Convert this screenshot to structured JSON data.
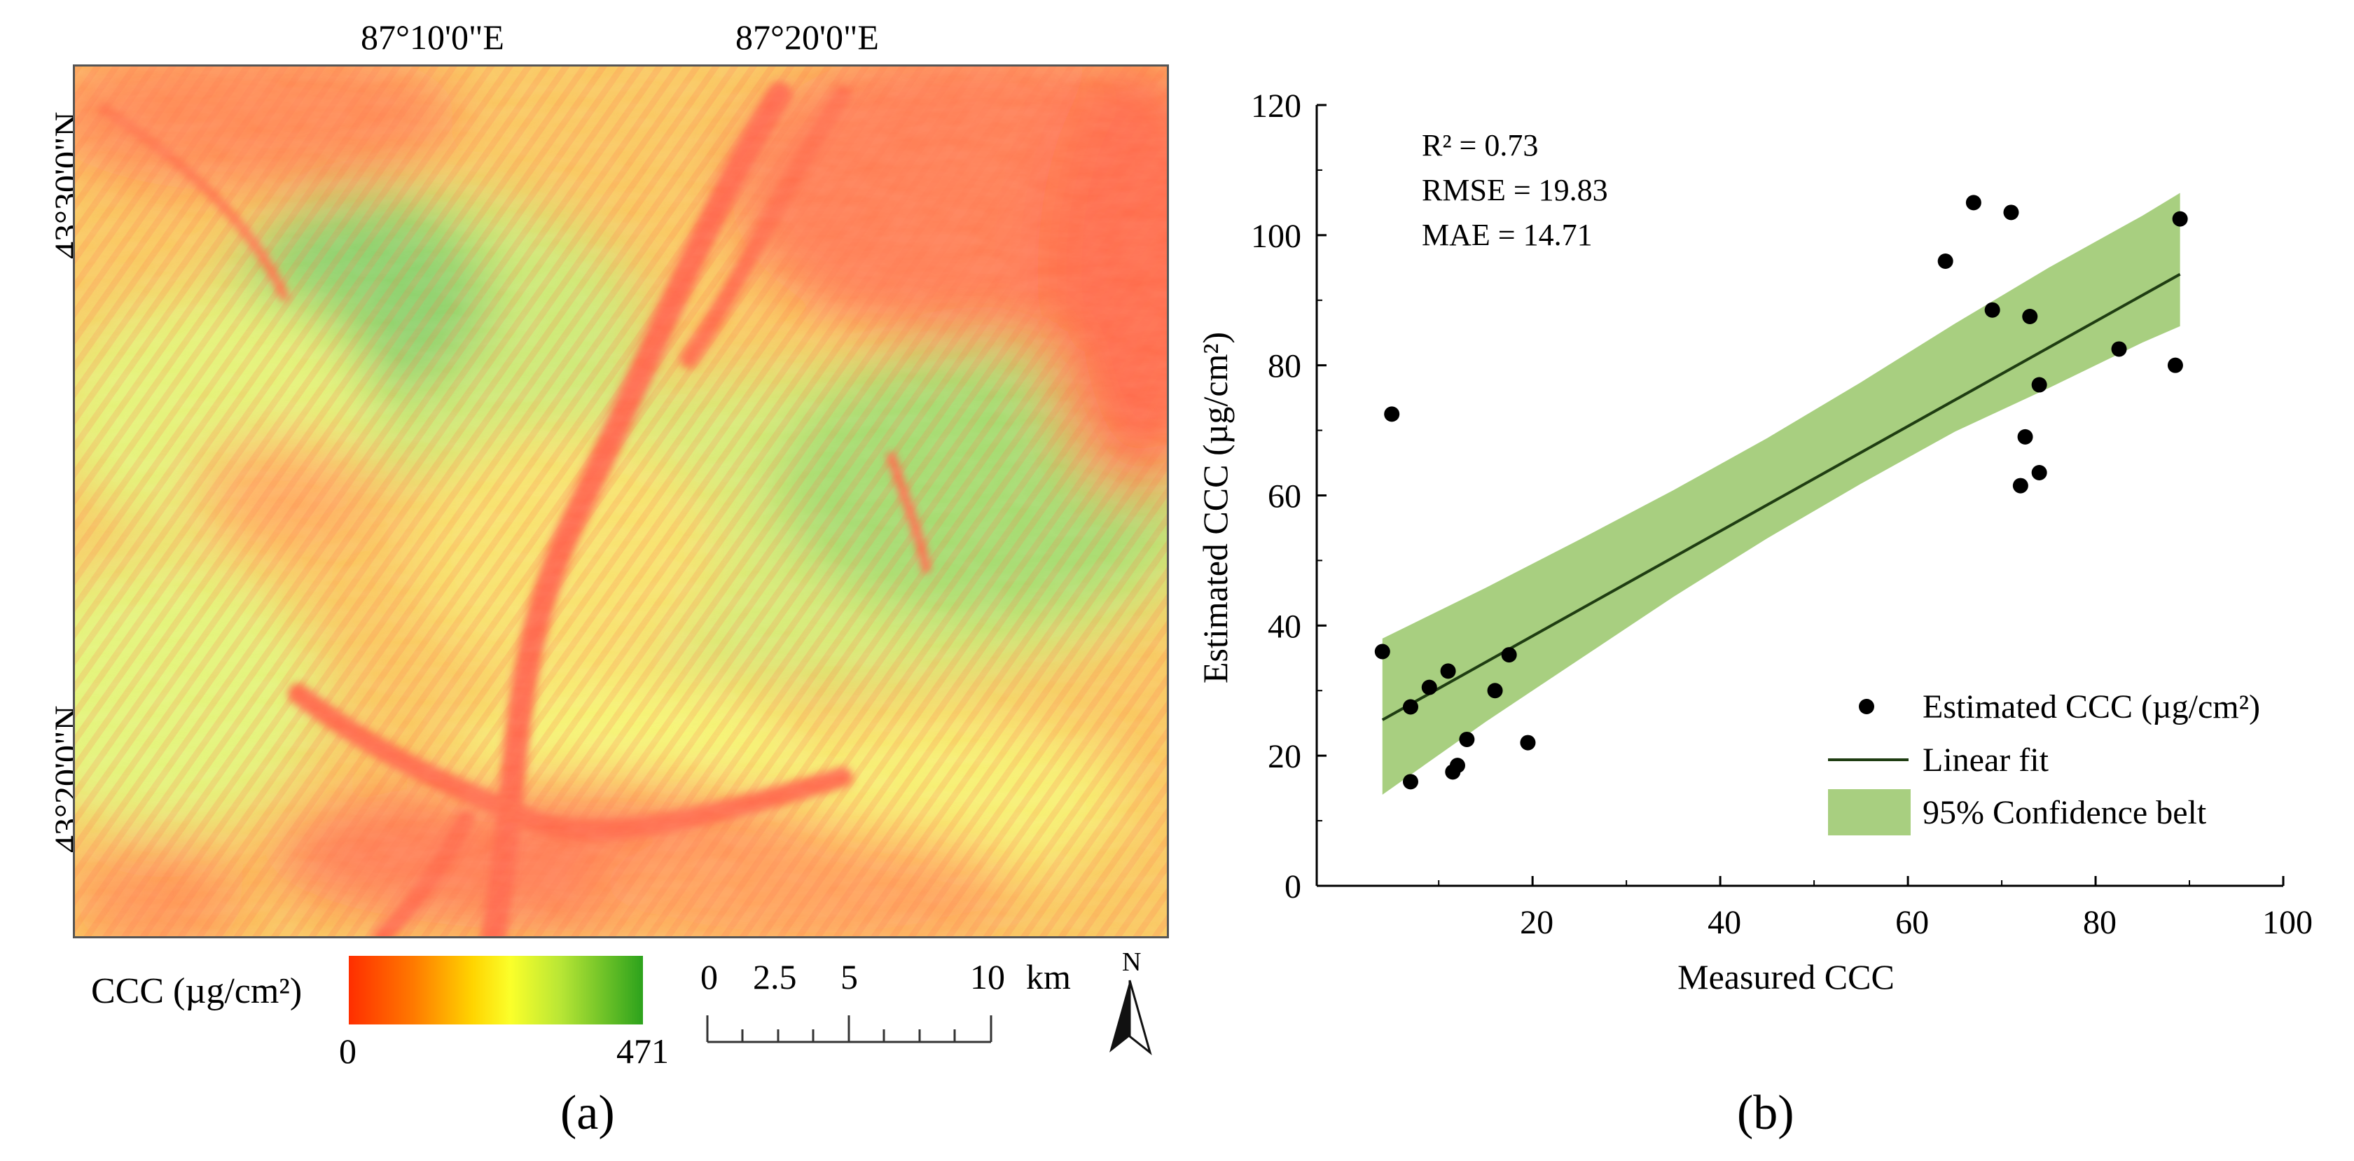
{
  "panel_a": {
    "label": "(a)",
    "lon_ticks": [
      "87°10'0\"E",
      "87°20'0\"E"
    ],
    "lat_ticks": [
      "43°30'0\"N",
      "43°20'0\"N"
    ],
    "legend": {
      "title": "CCC (µg/cm²)",
      "min": "0",
      "max": "471"
    },
    "scale_bar": {
      "labels": [
        "0",
        "2.5",
        "5",
        "10"
      ],
      "unit": "km"
    },
    "north_arrow": "N",
    "colors": {
      "low": "#ff2e00",
      "mid": "#fbff2a",
      "high": "#2ca21c"
    }
  },
  "panel_b": {
    "label": "(b)",
    "stats": [
      "R² = 0.73",
      "RMSE = 19.83",
      "MAE = 14.71"
    ],
    "legend": [
      "Estimated CCC (µg/cm²)",
      "Linear fit",
      "95% Confidence belt"
    ],
    "colors": {
      "points": "#000000",
      "fit": "#1f3d12",
      "band": "#a8cf80"
    }
  },
  "chart_data": {
    "type": "scatter",
    "title": "",
    "xlabel": "Measured CCC",
    "ylabel": "Estimated CCC (µg/cm²)",
    "xlim": [
      -3,
      100
    ],
    "ylim": [
      0,
      120
    ],
    "xticks": [
      20,
      40,
      60,
      80,
      100
    ],
    "yticks": [
      0,
      20,
      40,
      60,
      80,
      100,
      120
    ],
    "points": [
      {
        "x": 4,
        "y": 36
      },
      {
        "x": 5,
        "y": 72.5
      },
      {
        "x": 7,
        "y": 27.5
      },
      {
        "x": 7,
        "y": 16
      },
      {
        "x": 9,
        "y": 30.5
      },
      {
        "x": 11,
        "y": 33
      },
      {
        "x": 11.5,
        "y": 17.5
      },
      {
        "x": 12,
        "y": 18.5
      },
      {
        "x": 13,
        "y": 22.5
      },
      {
        "x": 16,
        "y": 30
      },
      {
        "x": 17.5,
        "y": 35.5
      },
      {
        "x": 19.5,
        "y": 22
      },
      {
        "x": 64,
        "y": 96
      },
      {
        "x": 67,
        "y": 105
      },
      {
        "x": 69,
        "y": 88.5
      },
      {
        "x": 71,
        "y": 103.5
      },
      {
        "x": 72,
        "y": 61.5
      },
      {
        "x": 72.5,
        "y": 69
      },
      {
        "x": 73,
        "y": 87.5
      },
      {
        "x": 74,
        "y": 77
      },
      {
        "x": 74,
        "y": 63.5
      },
      {
        "x": 82.5,
        "y": 82.5
      },
      {
        "x": 88.5,
        "y": 80
      },
      {
        "x": 89,
        "y": 102.5
      }
    ],
    "fit": {
      "x": [
        4,
        89
      ],
      "y": [
        25.5,
        94
      ]
    },
    "band": {
      "x": [
        4,
        15,
        25,
        35,
        45,
        55,
        65,
        75,
        85,
        89
      ],
      "lower": [
        14,
        25.2,
        34.8,
        44.4,
        53.4,
        61.8,
        69.8,
        76.5,
        83.5,
        86
      ],
      "upper": [
        38,
        45.8,
        53.2,
        60.8,
        68.8,
        77.4,
        86.4,
        95,
        103,
        106.5
      ]
    }
  }
}
